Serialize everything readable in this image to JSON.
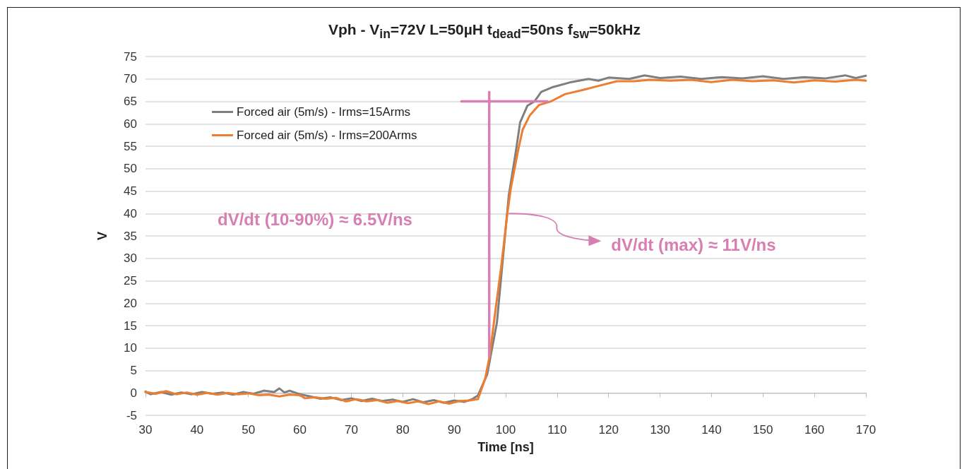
{
  "chart_data": {
    "type": "line",
    "title": "Vph - V$_{in}$=72V L=50µH t$_{dead}$=50ns f$_{sw}$=50kHz",
    "xlabel": "Time [ns]",
    "ylabel": "V",
    "xlim": [
      30,
      170
    ],
    "xticks": [
      30,
      40,
      50,
      60,
      70,
      80,
      90,
      100,
      110,
      120,
      130,
      140,
      150,
      160,
      170
    ],
    "ylim": [
      -5,
      75
    ],
    "yticks": [
      -5,
      0,
      5,
      10,
      15,
      20,
      25,
      30,
      35,
      40,
      45,
      50,
      55,
      60,
      65,
      70,
      75
    ],
    "grid": "y",
    "legend": "top left",
    "marker": "none",
    "line_style": "solid",
    "series": [
      {
        "name": "Forced air (5m/s) - Irms=15Arms",
        "color": "#7f7f7f",
        "x": [
          30,
          31,
          33,
          35,
          37,
          39,
          41,
          43,
          45,
          47,
          49,
          51,
          53,
          55,
          56,
          57,
          58,
          60,
          62,
          64,
          66,
          68,
          70,
          72,
          74,
          76,
          78,
          80,
          82,
          84,
          86,
          88,
          90,
          92,
          93.5,
          94.6,
          96.4,
          98.3,
          100.6,
          102,
          102.8,
          104.2,
          105.6,
          106.9,
          109.2,
          112.4,
          116.1,
          118,
          120,
          124,
          127,
          130,
          134,
          138,
          142,
          146,
          150,
          154,
          158,
          162,
          166,
          168,
          170
        ],
        "values": [
          0.3,
          -0.3,
          0.2,
          -0.4,
          0.1,
          -0.3,
          0.2,
          -0.2,
          0.1,
          -0.4,
          0.2,
          -0.2,
          0.5,
          0.2,
          1.0,
          0.1,
          0.5,
          -0.3,
          -0.8,
          -1.3,
          -1.0,
          -1.6,
          -1.2,
          -1.8,
          -1.3,
          -1.8,
          -1.5,
          -2.0,
          -1.4,
          -2.1,
          -1.6,
          -2.2,
          -1.7,
          -2.0,
          -1.4,
          -0.6,
          4.1,
          15.7,
          44.0,
          54.0,
          60.3,
          64.0,
          65.0,
          67.1,
          68.2,
          69.2,
          70.0,
          69.6,
          70.3,
          70.0,
          70.8,
          70.2,
          70.5,
          70.0,
          70.4,
          70.1,
          70.6,
          70.0,
          70.4,
          70.1,
          70.8,
          70.2,
          70.7
        ]
      },
      {
        "name": "Forced air (5m/s) - Irms=200Arms",
        "color": "#ed7d31",
        "x": [
          30,
          32,
          34,
          36,
          38,
          40,
          42,
          44,
          46,
          48,
          50,
          52,
          54,
          56,
          58,
          60,
          61,
          63,
          65,
          67,
          69,
          71,
          73,
          75,
          77,
          79,
          81,
          83,
          85,
          87,
          89,
          91,
          93,
          94.6,
          96,
          96.9,
          98,
          99.2,
          100.3,
          101,
          102.4,
          103.3,
          104.7,
          106.5,
          108.8,
          111.5,
          115.2,
          117.9,
          121.6,
          125,
          128,
          132,
          136,
          140,
          144,
          148,
          152,
          156,
          160,
          164,
          168,
          170
        ],
        "values": [
          0.2,
          -0.2,
          0.4,
          -0.3,
          0.1,
          -0.4,
          0.0,
          -0.4,
          0.0,
          -0.3,
          -0.1,
          -0.5,
          -0.4,
          -0.8,
          -0.4,
          -0.5,
          -1.2,
          -1.0,
          -1.3,
          -1.1,
          -1.9,
          -1.4,
          -1.9,
          -1.6,
          -2.2,
          -1.8,
          -2.3,
          -1.9,
          -2.5,
          -1.9,
          -2.4,
          -1.8,
          -1.7,
          -1.4,
          3.1,
          8.3,
          18.3,
          28.8,
          39.8,
          45.6,
          54.0,
          58.7,
          61.9,
          64.2,
          65.0,
          66.6,
          67.6,
          68.4,
          69.5,
          69.5,
          69.8,
          69.6,
          69.8,
          69.3,
          69.8,
          69.5,
          69.7,
          69.2,
          69.7,
          69.4,
          69.8,
          69.6
        ]
      },
      {
        "color": "#d77fb3",
        "x": [
          96.8,
          96.8
        ],
        "values": [
          8.1,
          67.1
        ]
      },
      {
        "color": "#d77fb3",
        "x": [
          91.4,
          108.1
        ],
        "values": [
          65,
          65
        ]
      }
    ],
    "annotations": [
      "dV/dt (10-90%) ≈ 6.5V/ns",
      {
        "text": "dV/dt (max) ≈ 11V/ns",
        "x": 100.6,
        "y": 40
      }
    ]
  }
}
